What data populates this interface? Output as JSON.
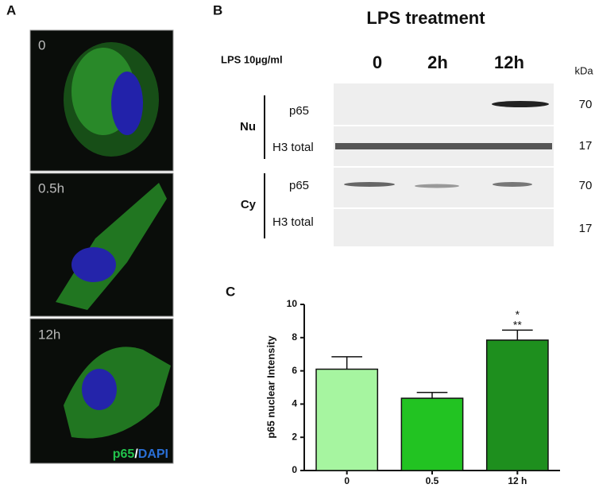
{
  "panel_a": {
    "label": "A",
    "images": [
      {
        "label": "0"
      },
      {
        "label": "0.5h"
      },
      {
        "label": "12h"
      }
    ],
    "legend": [
      "p65",
      "/",
      "DAPI"
    ]
  },
  "panel_b": {
    "label": "B",
    "title": "LPS treatment",
    "treatment_label": "LPS 10µg/ml",
    "lanes": [
      "0",
      "2h",
      "12h"
    ],
    "unit": "kDa",
    "groups": [
      {
        "label": "Nu",
        "rows": [
          {
            "label": "p65",
            "kda": 70
          },
          {
            "label": "H3 total",
            "kda": 17
          }
        ]
      },
      {
        "label": "Cy",
        "rows": [
          {
            "label": "p65",
            "kda": 70
          },
          {
            "label": "H3 total",
            "kda": 17
          }
        ]
      }
    ]
  },
  "chart_data": {
    "panel_label": "C",
    "type": "bar",
    "y_label": "p65 nuclear Intensity",
    "categories": [
      "0",
      "0.5",
      "12 h"
    ],
    "values": [
      6.1,
      4.35,
      7.85
    ],
    "errors": [
      0.75,
      0.35,
      0.6
    ],
    "colors": [
      "#a6f5a0",
      "#22c322",
      "#1e8f1e"
    ],
    "ylim": [
      0,
      10
    ],
    "yticks": [
      0,
      2,
      4,
      6,
      8,
      10
    ],
    "annotations": [
      "*",
      "**"
    ]
  }
}
